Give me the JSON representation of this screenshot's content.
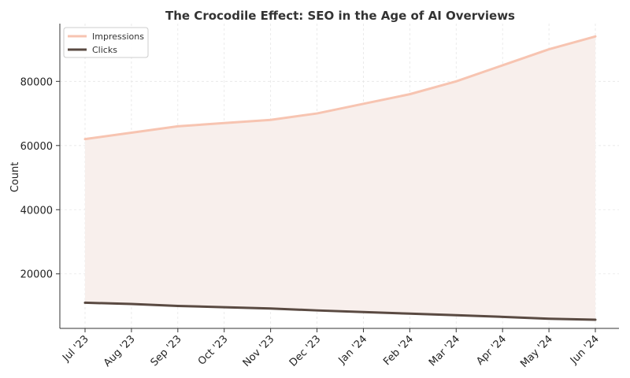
{
  "chart_data": {
    "type": "line",
    "title": "The Crocodile Effect: SEO in the Age of AI Overviews",
    "xlabel": "",
    "ylabel": "Count",
    "categories": [
      "Jul '23",
      "Aug '23",
      "Sep '23",
      "Oct '23",
      "Nov '23",
      "Dec '23",
      "Jan '24",
      "Feb '24",
      "Mar '24",
      "Apr '24",
      "May '24",
      "Jun '24"
    ],
    "series": [
      {
        "name": "Impressions",
        "values": [
          62000,
          64000,
          66000,
          67000,
          68000,
          70000,
          73000,
          76000,
          80000,
          85000,
          90000,
          94000
        ],
        "color": "#f7c4b1"
      },
      {
        "name": "Clicks",
        "values": [
          11000,
          10600,
          10000,
          9600,
          9200,
          8600,
          8100,
          7600,
          7100,
          6600,
          6000,
          5700
        ],
        "color": "#5a4a42"
      }
    ],
    "fill_between": {
      "series": [
        "Impressions",
        "Clicks"
      ],
      "color": "#f8efec"
    },
    "yticks": [
      20000,
      40000,
      60000,
      80000
    ],
    "ylim": [
      3000,
      98000
    ],
    "grid": true,
    "legend": "top-left"
  }
}
